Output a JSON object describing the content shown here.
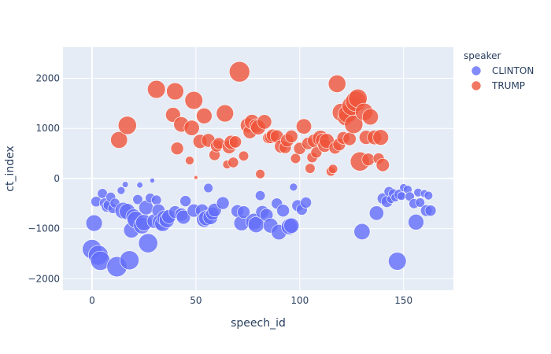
{
  "chart_data": {
    "type": "scatter",
    "xlabel": "speech_id",
    "ylabel": "ct_index",
    "xlim": [
      -14,
      174
    ],
    "ylim": [
      -2230,
      2620
    ],
    "x_ticks": [
      0,
      50,
      100,
      150
    ],
    "x_tick_labels": [
      "0",
      "50",
      "100",
      "150"
    ],
    "y_ticks": [
      -2000,
      -1000,
      0,
      1000,
      2000
    ],
    "y_tick_labels": [
      "−2000",
      "−1000",
      "0",
      "1000",
      "2000"
    ],
    "grid": true,
    "legend": {
      "title": "speaker",
      "placement": "top-right"
    },
    "series": [
      {
        "name": "CLINTON",
        "color": "#636efa",
        "points": [
          [
            0,
            -1410,
            1520
          ],
          [
            1,
            -890,
            1100
          ],
          [
            2,
            -460,
            450
          ],
          [
            3,
            -1530,
            1600
          ],
          [
            4,
            -1640,
            1520
          ],
          [
            5,
            -300,
            400
          ],
          [
            6,
            -490,
            420
          ],
          [
            7,
            -570,
            400
          ],
          [
            8,
            -530,
            470
          ],
          [
            9,
            -370,
            380
          ],
          [
            10,
            -600,
            400
          ],
          [
            11,
            -490,
            380
          ],
          [
            12,
            -1760,
            1650
          ],
          [
            14,
            -240,
            250
          ],
          [
            15,
            -640,
            1100
          ],
          [
            16,
            -120,
            150
          ],
          [
            17,
            -660,
            1050
          ],
          [
            18,
            -1630,
            1480
          ],
          [
            19,
            -1030,
            1000
          ],
          [
            20,
            -760,
            950
          ],
          [
            21,
            -820,
            1150
          ],
          [
            22,
            -420,
            400
          ],
          [
            23,
            -130,
            150
          ],
          [
            24,
            -940,
            1100
          ],
          [
            25,
            -880,
            1100
          ],
          [
            26,
            -580,
            850
          ],
          [
            27,
            -1290,
            1480
          ],
          [
            28,
            -390,
            390
          ],
          [
            29,
            -40,
            100
          ],
          [
            30,
            -850,
            850
          ],
          [
            31,
            -430,
            400
          ],
          [
            32,
            -640,
            700
          ],
          [
            33,
            -870,
            1050
          ],
          [
            34,
            -900,
            1000
          ],
          [
            35,
            -790,
            1000
          ],
          [
            36,
            -830,
            950
          ],
          [
            37,
            -760,
            800
          ],
          [
            40,
            -670,
            650
          ],
          [
            43,
            -720,
            700
          ],
          [
            44,
            -770,
            800
          ],
          [
            45,
            -450,
            500
          ],
          [
            49,
            -640,
            700
          ],
          [
            53,
            -640,
            700
          ],
          [
            54,
            -820,
            950
          ],
          [
            55,
            -790,
            950
          ],
          [
            56,
            -190,
            350
          ],
          [
            57,
            -770,
            900
          ],
          [
            58,
            -700,
            700
          ],
          [
            59,
            -630,
            750
          ],
          [
            63,
            -490,
            650
          ],
          [
            70,
            -650,
            650
          ],
          [
            72,
            -890,
            950
          ],
          [
            73,
            -670,
            650
          ],
          [
            78,
            -860,
            1100
          ],
          [
            79,
            -920,
            1050
          ],
          [
            81,
            -340,
            400
          ],
          [
            82,
            -670,
            700
          ],
          [
            84,
            -730,
            700
          ],
          [
            86,
            -940,
            900
          ],
          [
            89,
            -500,
            500
          ],
          [
            90,
            -1070,
            950
          ],
          [
            92,
            -640,
            650
          ],
          [
            95,
            -960,
            1050
          ],
          [
            96,
            -940,
            950
          ],
          [
            97,
            -170,
            250
          ],
          [
            99,
            -540,
            550
          ],
          [
            101,
            -620,
            500
          ],
          [
            103,
            -480,
            500
          ],
          [
            130,
            -1060,
            1050
          ],
          [
            137,
            -690,
            850
          ],
          [
            140,
            -400,
            500
          ],
          [
            142,
            -460,
            550
          ],
          [
            143,
            -260,
            400
          ],
          [
            144,
            -410,
            300
          ],
          [
            145,
            -300,
            350
          ],
          [
            146,
            -380,
            300
          ],
          [
            147,
            -1650,
            1300
          ],
          [
            148,
            -320,
            450
          ],
          [
            149,
            -350,
            300
          ],
          [
            150,
            -180,
            250
          ],
          [
            152,
            -220,
            300
          ],
          [
            153,
            -360,
            350
          ],
          [
            155,
            -500,
            400
          ],
          [
            156,
            -870,
            1000
          ],
          [
            157,
            -280,
            300
          ],
          [
            158,
            -480,
            350
          ],
          [
            160,
            -300,
            250
          ],
          [
            161,
            -640,
            550
          ],
          [
            162,
            -340,
            300
          ],
          [
            163,
            -640,
            500
          ]
        ]
      },
      {
        "name": "TRUMP",
        "color": "#ef553b",
        "points": [
          [
            13,
            770,
            1150
          ],
          [
            17,
            1060,
            1350
          ],
          [
            31,
            1780,
            1300
          ],
          [
            39,
            1270,
            900
          ],
          [
            40,
            1740,
            1200
          ],
          [
            41,
            600,
            650
          ],
          [
            43,
            1080,
            950
          ],
          [
            47,
            360,
            300
          ],
          [
            48,
            1010,
            950
          ],
          [
            49,
            1560,
            1300
          ],
          [
            50,
            20,
            60
          ],
          [
            52,
            740,
            800
          ],
          [
            54,
            1250,
            1000
          ],
          [
            56,
            760,
            750
          ],
          [
            59,
            470,
            500
          ],
          [
            60,
            650,
            600
          ],
          [
            61,
            700,
            550
          ],
          [
            64,
            1300,
            1200
          ],
          [
            65,
            280,
            300
          ],
          [
            66,
            630,
            750
          ],
          [
            67,
            720,
            800
          ],
          [
            68,
            320,
            450
          ],
          [
            69,
            730,
            600
          ],
          [
            71,
            2130,
            1700
          ],
          [
            73,
            450,
            400
          ],
          [
            75,
            1060,
            900
          ],
          [
            76,
            930,
            750
          ],
          [
            77,
            1130,
            900
          ],
          [
            79,
            1050,
            800
          ],
          [
            80,
            1020,
            900
          ],
          [
            81,
            90,
            350
          ],
          [
            83,
            1130,
            850
          ],
          [
            85,
            810,
            550
          ],
          [
            86,
            820,
            600
          ],
          [
            87,
            860,
            650
          ],
          [
            89,
            840,
            700
          ],
          [
            91,
            640,
            700
          ],
          [
            93,
            620,
            600
          ],
          [
            94,
            760,
            700
          ],
          [
            96,
            840,
            650
          ],
          [
            98,
            400,
            400
          ],
          [
            100,
            600,
            600
          ],
          [
            102,
            1040,
            950
          ],
          [
            104,
            700,
            600
          ],
          [
            105,
            200,
            400
          ],
          [
            106,
            420,
            450
          ],
          [
            107,
            750,
            750
          ],
          [
            108,
            520,
            500
          ],
          [
            110,
            800,
            1050
          ],
          [
            111,
            760,
            800
          ],
          [
            112,
            660,
            750
          ],
          [
            113,
            750,
            900
          ],
          [
            115,
            140,
            350
          ],
          [
            116,
            190,
            350
          ],
          [
            117,
            610,
            600
          ],
          [
            118,
            1890,
            1250
          ],
          [
            119,
            680,
            650
          ],
          [
            120,
            1320,
            1300
          ],
          [
            121,
            810,
            650
          ],
          [
            122,
            1210,
            950
          ],
          [
            123,
            1290,
            1350
          ],
          [
            124,
            790,
            700
          ],
          [
            125,
            1450,
            1500
          ],
          [
            126,
            1080,
            1350
          ],
          [
            127,
            1540,
            1700
          ],
          [
            128,
            1600,
            1400
          ],
          [
            129,
            340,
            1500
          ],
          [
            131,
            1330,
            1250
          ],
          [
            132,
            820,
            800
          ],
          [
            133,
            380,
            650
          ],
          [
            134,
            1230,
            1050
          ],
          [
            136,
            820,
            850
          ],
          [
            138,
            400,
            500
          ],
          [
            139,
            820,
            1000
          ],
          [
            140,
            270,
            700
          ]
        ]
      }
    ]
  }
}
